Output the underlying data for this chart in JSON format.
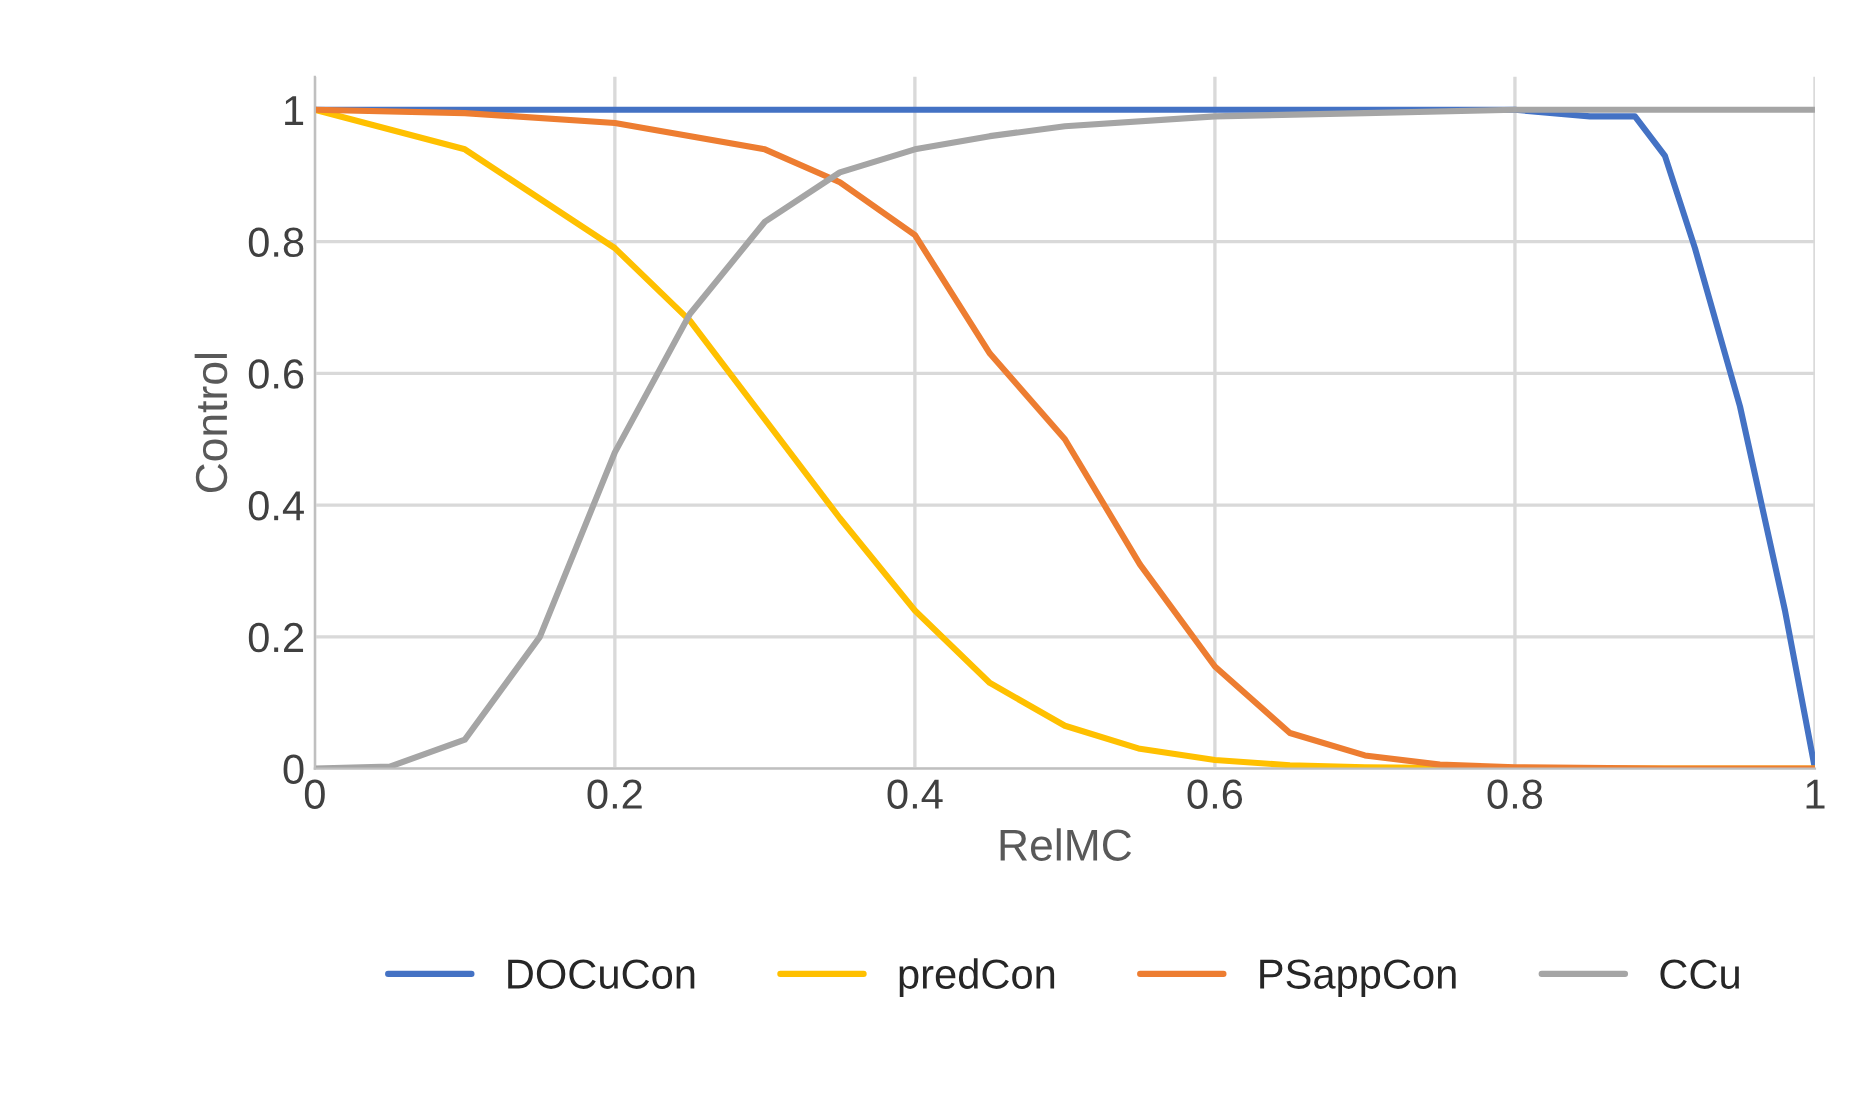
{
  "chart_data": {
    "type": "line",
    "xlabel": "RelMC",
    "ylabel": "Control",
    "xlim": [
      0,
      1
    ],
    "xticks": [
      0,
      0.2,
      0.4,
      0.6,
      0.8,
      1
    ],
    "ylim": [
      0,
      1.05
    ],
    "yticks": [
      0,
      0.2,
      0.4,
      0.6,
      0.8,
      1
    ],
    "grid": true,
    "legend": "bottom",
    "marker": "none",
    "line_style": "solid",
    "series": [
      {
        "name": "DOCuCon",
        "color": "#4472c4",
        "x": [
          0,
          0.2,
          0.4,
          0.6,
          0.8,
          0.85,
          0.88,
          0.9,
          0.92,
          0.95,
          0.98,
          1
        ],
        "values": [
          1,
          1,
          1,
          1,
          1,
          0.99,
          0.99,
          0.93,
          0.79,
          0.55,
          0.24,
          0
        ]
      },
      {
        "name": "predCon",
        "color": "#ffc000",
        "x": [
          0,
          0.1,
          0.2,
          0.25,
          0.3,
          0.35,
          0.4,
          0.45,
          0.5,
          0.55,
          0.6,
          0.65,
          0.7,
          0.8,
          1
        ],
        "values": [
          1,
          0.94,
          0.79,
          0.68,
          0.53,
          0.38,
          0.24,
          0.13,
          0.065,
          0.03,
          0.013,
          0.005,
          0.002,
          0,
          0
        ]
      },
      {
        "name": "PSappCon",
        "color": "#ed7d31",
        "x": [
          0,
          0.1,
          0.2,
          0.3,
          0.35,
          0.4,
          0.45,
          0.5,
          0.55,
          0.6,
          0.65,
          0.7,
          0.75,
          0.8,
          0.9,
          1
        ],
        "values": [
          1,
          0.995,
          0.98,
          0.94,
          0.89,
          0.81,
          0.63,
          0.5,
          0.31,
          0.155,
          0.054,
          0.02,
          0.006,
          0.002,
          0,
          0
        ]
      },
      {
        "name": "CCu",
        "color": "#a5a5a5",
        "x": [
          0,
          0.05,
          0.1,
          0.15,
          0.2,
          0.25,
          0.3,
          0.35,
          0.4,
          0.45,
          0.5,
          0.6,
          0.7,
          0.8,
          1
        ],
        "values": [
          0,
          0.003,
          0.044,
          0.2,
          0.48,
          0.69,
          0.83,
          0.905,
          0.94,
          0.96,
          0.975,
          0.99,
          0.995,
          1,
          1
        ]
      }
    ]
  }
}
